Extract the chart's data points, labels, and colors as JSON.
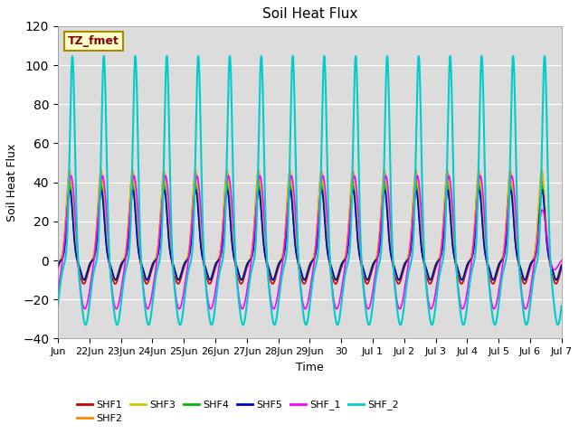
{
  "title": "Soil Heat Flux",
  "xlabel": "Time",
  "ylabel": "Soil Heat Flux",
  "ylim": [
    -40,
    120
  ],
  "yticks": [
    -40,
    -20,
    0,
    20,
    40,
    60,
    80,
    100,
    120
  ],
  "bg_color": "#dcdcdc",
  "series": {
    "SHF1": {
      "color": "#cc0000",
      "lw": 1.2
    },
    "SHF2": {
      "color": "#ff8800",
      "lw": 1.2
    },
    "SHF3": {
      "color": "#cccc00",
      "lw": 1.2
    },
    "SHF4": {
      "color": "#00bb00",
      "lw": 1.2
    },
    "SHF5": {
      "color": "#0000cc",
      "lw": 1.2
    },
    "SHF_1": {
      "color": "#ff00ff",
      "lw": 1.2
    },
    "SHF_2": {
      "color": "#00cccc",
      "lw": 1.5
    }
  },
  "annotation_text": "TZ_fmet",
  "annotation_color": "#880000",
  "annotation_bg": "#ffffcc",
  "annotation_border": "#aa8800",
  "n_days": 16,
  "points_per_day": 288,
  "x_tick_labels": [
    "Jun",
    "22Jun",
    "23Jun",
    "24Jun",
    "25Jun",
    "26Jun",
    "27Jun",
    "28Jun",
    "29Jun",
    "30",
    "Jul 1",
    "Jul 2",
    "Jul 3",
    "Jul 4",
    "Jul 5",
    "Jul 6",
    "Jul 7"
  ]
}
